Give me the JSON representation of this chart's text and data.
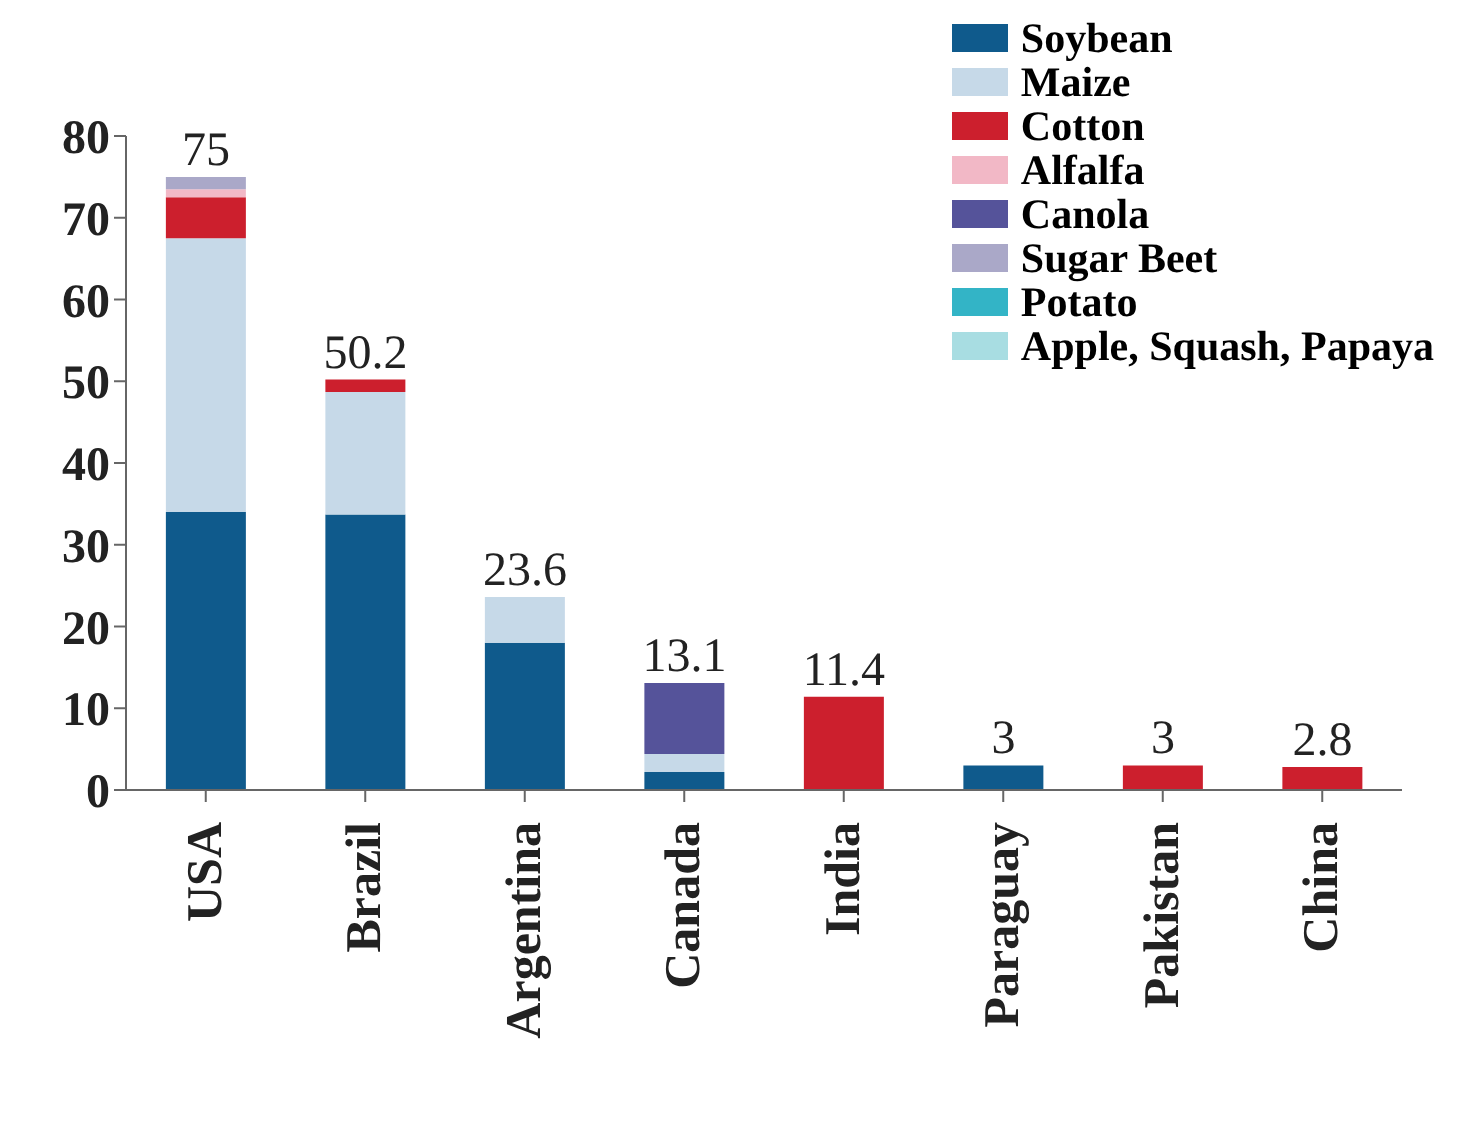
{
  "chart_data": {
    "type": "bar",
    "stacked": true,
    "categories": [
      "USA",
      "Brazil",
      "Argentina",
      "Canada",
      "India",
      "Paraguay",
      "Pakistan",
      "China"
    ],
    "series": [
      {
        "name": "Soybean",
        "color": "#0f5a8c",
        "values": [
          34,
          33.7,
          18,
          2.2,
          null,
          3,
          null,
          null
        ]
      },
      {
        "name": "Maize",
        "color": "#c6d9e8",
        "values": [
          33.5,
          15,
          5.6,
          2.2,
          null,
          null,
          null,
          null
        ]
      },
      {
        "name": "Cotton",
        "color": "#cc1f2d",
        "values": [
          5,
          1.5,
          null,
          null,
          11.4,
          null,
          3,
          2.8
        ]
      },
      {
        "name": "Alfalfa",
        "color": "#f2b8c6",
        "values": [
          1,
          null,
          null,
          null,
          null,
          null,
          null,
          null
        ]
      },
      {
        "name": "Canola",
        "color": "#55539a",
        "values": [
          null,
          null,
          null,
          8.7,
          null,
          null,
          null,
          null
        ]
      },
      {
        "name": "Sugar Beet",
        "color": "#aaa8c8",
        "values": [
          1.5,
          null,
          null,
          null,
          null,
          null,
          null,
          null
        ]
      },
      {
        "name": "Potato",
        "color": "#33b4c6",
        "values": [
          null,
          null,
          null,
          null,
          null,
          null,
          null,
          null
        ]
      },
      {
        "name": "Apple, Squash, Papaya",
        "color": "#a8dde2",
        "values": [
          null,
          null,
          null,
          null,
          null,
          null,
          null,
          null
        ]
      }
    ],
    "totals": [
      "75",
      "50.2",
      "23.6",
      "13.1",
      "11.4",
      "3",
      "3",
      "2.8"
    ],
    "ylim": [
      0,
      80
    ],
    "yticks": [
      0,
      10,
      20,
      30,
      40,
      50,
      60,
      70,
      80
    ],
    "grid": false,
    "legend": "top right"
  }
}
